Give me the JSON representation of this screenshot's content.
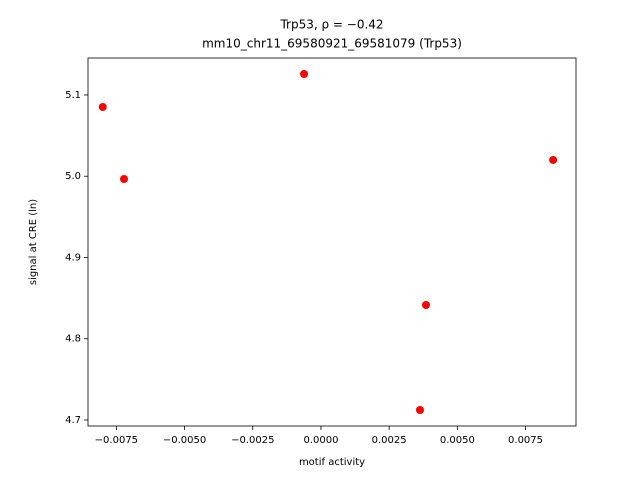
{
  "chart_data": {
    "type": "scatter",
    "title": "Trp53, ρ = −0.42",
    "subtitle": "mm10_chr11_69580921_69581079 (Trp53)",
    "x_label": "motif activity",
    "y_label": "signal at CRE (ln)",
    "color": "#ff0000",
    "x": [
      -0.008,
      -0.00722,
      -0.00062,
      0.00385,
      0.00363,
      0.00851
    ],
    "y": [
      5.0852,
      4.9966,
      5.1258,
      4.8415,
      4.7123,
      5.02
    ],
    "xlim": [
      -0.00854,
      0.00935
    ],
    "ylim": [
      4.6926,
      5.1455
    ],
    "xticks": [
      {
        "value": -0.0075,
        "label": "−0.0075"
      },
      {
        "value": -0.005,
        "label": "−0.0050"
      },
      {
        "value": -0.0025,
        "label": "−0.0025"
      },
      {
        "value": 0,
        "label": "0.0000"
      },
      {
        "value": 0.0025,
        "label": "0.0025"
      },
      {
        "value": 0.005,
        "label": "0.0050"
      },
      {
        "value": 0.0075,
        "label": "0.0075"
      }
    ],
    "yticks": [
      4.7,
      4.8,
      4.9,
      {
        "value": 5,
        "label": "5.0"
      },
      5.1
    ]
  }
}
